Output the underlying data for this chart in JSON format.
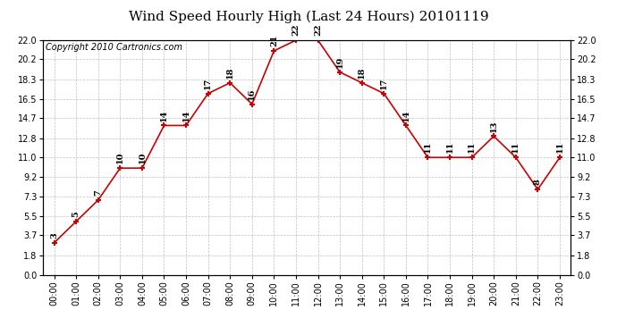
{
  "title": "Wind Speed Hourly High (Last 24 Hours) 20101119",
  "copyright_text": "Copyright 2010 Cartronics.com",
  "hours": [
    "00:00",
    "01:00",
    "02:00",
    "03:00",
    "04:00",
    "05:00",
    "06:00",
    "07:00",
    "08:00",
    "09:00",
    "10:00",
    "11:00",
    "12:00",
    "13:00",
    "14:00",
    "15:00",
    "16:00",
    "17:00",
    "18:00",
    "19:00",
    "20:00",
    "21:00",
    "22:00",
    "23:00"
  ],
  "wind_vals": [
    3,
    5,
    7,
    10,
    10,
    14,
    14,
    17,
    18,
    16,
    21,
    22,
    22,
    19,
    18,
    17,
    14,
    11,
    11,
    11,
    13,
    11,
    8,
    11
  ],
  "labels": [
    "3",
    "5",
    "7",
    "10",
    "10",
    "14",
    "14",
    "17",
    "18",
    "16",
    "21",
    "22",
    "22",
    "19",
    "18",
    "17",
    "14",
    "11",
    "11",
    "11",
    "13",
    "11",
    "8",
    "11"
  ],
  "yticks": [
    0.0,
    1.8,
    3.7,
    5.5,
    7.3,
    9.2,
    11.0,
    12.8,
    14.7,
    16.5,
    18.3,
    20.2,
    22.0
  ],
  "ymin": 0.0,
  "ymax": 22.0,
  "line_color": "#cc0000",
  "bg_color": "#ffffff",
  "grid_color": "#b0b0b0",
  "title_fontsize": 11,
  "label_fontsize": 7,
  "tick_fontsize": 7,
  "copyright_fontsize": 7
}
